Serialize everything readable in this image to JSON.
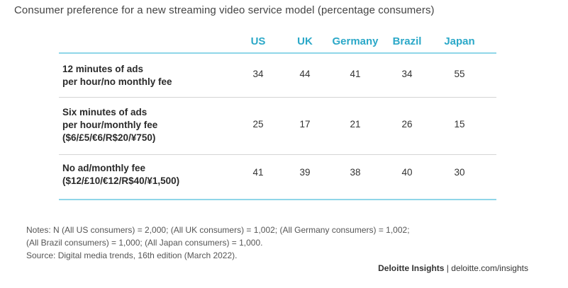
{
  "subtitle": "Consumer preference for a new streaming video service model (percentage consumers)",
  "chart_data": {
    "type": "table",
    "columns": [
      "US",
      "UK",
      "Germany",
      "Brazil",
      "Japan"
    ],
    "rows": [
      {
        "label_lines": [
          "12 minutes of ads",
          "per hour/no monthly fee"
        ],
        "values": [
          34,
          44,
          41,
          34,
          55
        ]
      },
      {
        "label_lines": [
          "Six minutes of ads",
          "per hour/monthly fee",
          "($6/£5/€6/R$20/¥750)"
        ],
        "values": [
          25,
          17,
          21,
          26,
          15
        ]
      },
      {
        "label_lines": [
          "No ad/monthly fee",
          "($12/£10/€12/R$40/¥1,500)"
        ],
        "values": [
          41,
          39,
          38,
          40,
          30
        ]
      }
    ]
  },
  "notes": [
    "Notes: N (All US consumers) = 2,000; (All UK consumers) = 1,002; (All Germany consumers) = 1,002;",
    "(All Brazil consumers) = 1,000; (All Japan consumers) = 1,000.",
    "Source: Digital media trends, 16th edition (March 2022)."
  ],
  "credit": {
    "brand": "Deloitte Insights",
    "separator": " | ",
    "url": "deloitte.com/insights"
  }
}
